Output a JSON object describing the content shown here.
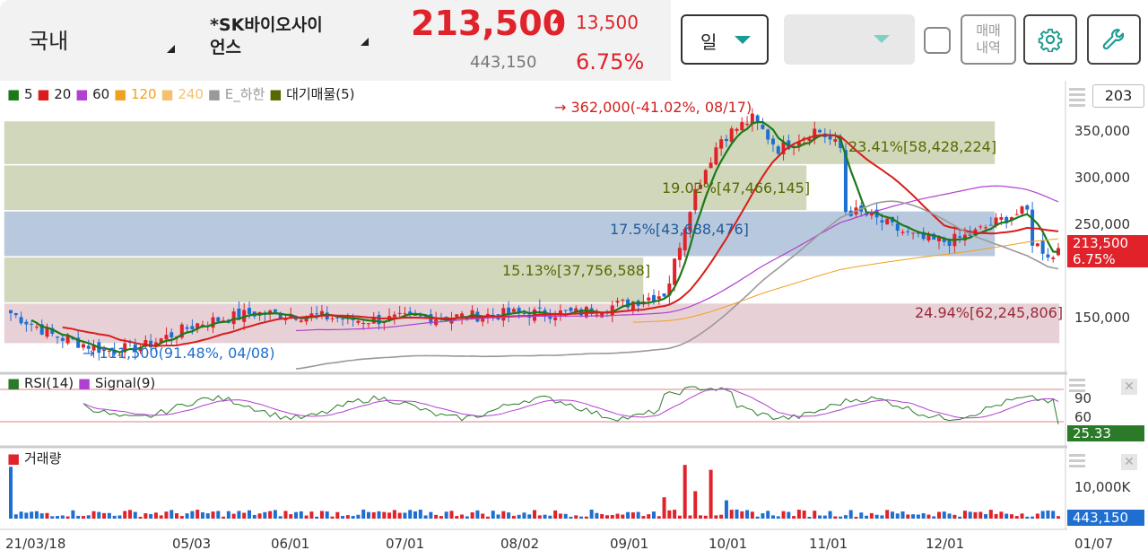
{
  "header": {
    "market": "국내",
    "stock_name_line1": "*SK바이오사이",
    "stock_name_line2": "언스",
    "price": "213,500",
    "change": "13,500",
    "volume": "443,150",
    "change_pct": "6.75%",
    "period": "일",
    "trade_history_line1": "매매",
    "trade_history_line2": "내역"
  },
  "legend": {
    "ma5": "5",
    "ma20": "20",
    "ma60": "60",
    "ma120": "120",
    "ma240": "240",
    "envelope": "E_하한",
    "supply": "대기매물(5)"
  },
  "count_box": "203",
  "annotations": {
    "high": "→ 362,000(-41.02%, 08/17)",
    "low": "→ 111,500(91.48%, 04/08)",
    "band1": "23.41%[58,428,224]",
    "band2": "19.02%[47,466,145]",
    "band3": "17.5%[43,688,476]",
    "band4": "15.13%[37,756,588]",
    "band5": "24.94%[62,245,806]"
  },
  "price_axis": [
    "350,000",
    "300,000",
    "250,000",
    "150,000"
  ],
  "price_tag": {
    "price": "213,500",
    "pct": "6.75%"
  },
  "rsi": {
    "title": "RSI(14)",
    "signal": "Signal(9)",
    "axis": [
      "90",
      "60"
    ],
    "value": "25.33"
  },
  "volume_panel": {
    "title": "거래량",
    "axis": "10,000K",
    "value": "443,150"
  },
  "dates": [
    "21/03/18",
    "05/03",
    "06/01",
    "07/01",
    "08/02",
    "09/01",
    "10/01",
    "11/01",
    "12/01",
    "01/07"
  ],
  "colors": {
    "up": "#e0222a",
    "down": "#1f6fd1",
    "ma5": "#1a7a1a",
    "ma20": "#d91c1c",
    "ma60": "#b040d0",
    "ma120": "#f0a020",
    "ma240": "#f5c070",
    "env": "#999999",
    "supply": "#556b00",
    "rsi": "#2a7a2a",
    "signal": "#b040d0"
  },
  "chart_data": {
    "type": "candlestick",
    "price_range": [
      100000,
      370000
    ],
    "y_ticks": [
      150000,
      250000,
      300000,
      350000
    ],
    "last_price": 213500,
    "high": {
      "value": 362000,
      "date": "08/17"
    },
    "low": {
      "value": 111500,
      "date": "04/08"
    },
    "supply_bands": [
      {
        "low": 120000,
        "high": 160000,
        "label": "24.94%[62,245,806]"
      },
      {
        "low": 160000,
        "high": 205000,
        "label": "15.13%[37,756,588]"
      },
      {
        "low": 205000,
        "high": 250000,
        "label": "17.5%[43,688,476]"
      },
      {
        "low": 250000,
        "high": 295000,
        "label": "19.02%[47,466,145]"
      },
      {
        "low": 295000,
        "high": 338000,
        "label": "23.41%[58,428,224]"
      }
    ],
    "rsi_levels": [
      90,
      60
    ],
    "rsi_value": 25.33,
    "volume_tick": "10,000K",
    "last_volume": 443150
  }
}
